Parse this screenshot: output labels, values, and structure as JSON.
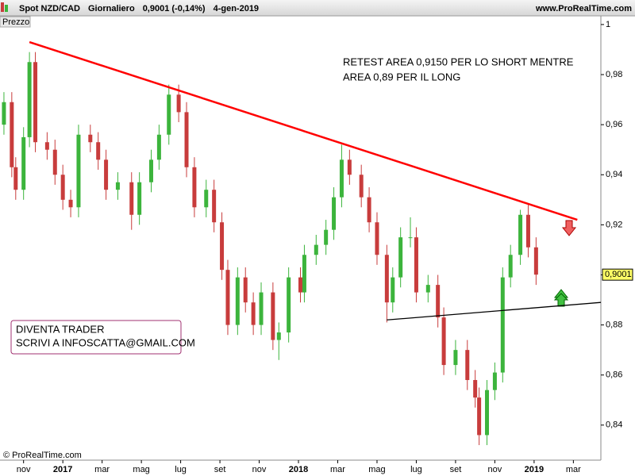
{
  "chart_data": {
    "type": "candlestick",
    "title": "Spot NZD/CAD",
    "timeframe": "Giornaliero",
    "quote": "0,9001 (-0,14%)",
    "date": "4-gen-2019",
    "source": "www.ProRealTime.com",
    "panel_label": "Prezzo",
    "copyright": "© ProRealTime.com",
    "annotations": [
      {
        "lines": [
          "RETEST AREA 0,9150 PER LO SHORT MENTRE",
          "AREA 0,89 PER IL LONG"
        ]
      },
      {
        "lines": [
          "DIVENTA TRADER",
          "SCRIVI A INFOSCATTA@GMAIL.COM"
        ],
        "boxed": true
      }
    ],
    "last_price": {
      "value": 0.9001,
      "label": "0,9001"
    },
    "up_color": "#3cb43c",
    "down_color": "#c83c3c",
    "x": [
      -1.0,
      -0.6,
      -0.4,
      0.0,
      0.3,
      0.6,
      1.2,
      1.6,
      2.0,
      2.4,
      2.8,
      3.4,
      3.8,
      4.2,
      4.8,
      5.5,
      5.9,
      6.5,
      6.9,
      7.4,
      7.9,
      8.3,
      8.7,
      9.3,
      9.7,
      10.1,
      10.4,
      10.9,
      11.3,
      11.7,
      12.1,
      12.7,
      13.0,
      13.5,
      14.1,
      14.3,
      14.9,
      15.4,
      15.8,
      16.2,
      16.6,
      17.2,
      17.6,
      18.0,
      18.5,
      18.8,
      19.2,
      19.7,
      20.0,
      20.6,
      21.1,
      21.4,
      22.0,
      22.6,
      23.0,
      23.2,
      23.6,
      24.0,
      24.4,
      24.8,
      25.3,
      25.7,
      26.1
    ],
    "open": [
      0.96,
      0.969,
      0.943,
      0.934,
      0.955,
      0.985,
      0.953,
      0.95,
      0.94,
      0.93,
      0.927,
      0.956,
      0.953,
      0.946,
      0.934,
      0.937,
      0.924,
      0.937,
      0.946,
      0.956,
      0.972,
      0.965,
      0.943,
      0.927,
      0.934,
      0.921,
      0.902,
      0.88,
      0.899,
      0.889,
      0.88,
      0.893,
      0.874,
      0.877,
      0.899,
      0.893,
      0.908,
      0.912,
      0.918,
      0.931,
      0.946,
      0.94,
      0.931,
      0.921,
      0.908,
      0.889,
      0.899,
      0.915,
      0.915,
      0.893,
      0.896,
      0.883,
      0.864,
      0.87,
      0.858,
      0.851,
      0.836,
      0.854,
      0.861,
      0.899,
      0.908,
      0.924,
      0.911
    ],
    "high": [
      0.973,
      0.973,
      0.947,
      0.959,
      0.989,
      0.989,
      0.957,
      0.954,
      0.944,
      0.934,
      0.96,
      0.96,
      0.957,
      0.95,
      0.941,
      0.941,
      0.941,
      0.95,
      0.96,
      0.976,
      0.976,
      0.969,
      0.947,
      0.938,
      0.938,
      0.925,
      0.906,
      0.903,
      0.903,
      0.893,
      0.897,
      0.897,
      0.881,
      0.903,
      0.903,
      0.912,
      0.916,
      0.922,
      0.935,
      0.952,
      0.95,
      0.944,
      0.935,
      0.925,
      0.912,
      0.903,
      0.919,
      0.923,
      0.919,
      0.9,
      0.9,
      0.887,
      0.874,
      0.874,
      0.862,
      0.855,
      0.858,
      0.865,
      0.903,
      0.912,
      0.926,
      0.928,
      0.915
    ],
    "low": [
      0.956,
      0.939,
      0.93,
      0.93,
      0.951,
      0.949,
      0.946,
      0.936,
      0.926,
      0.923,
      0.923,
      0.949,
      0.942,
      0.93,
      0.93,
      0.918,
      0.92,
      0.933,
      0.942,
      0.952,
      0.961,
      0.939,
      0.923,
      0.923,
      0.917,
      0.898,
      0.876,
      0.876,
      0.885,
      0.876,
      0.876,
      0.87,
      0.866,
      0.873,
      0.889,
      0.889,
      0.904,
      0.908,
      0.914,
      0.927,
      0.936,
      0.927,
      0.917,
      0.904,
      0.881,
      0.885,
      0.895,
      0.911,
      0.889,
      0.889,
      0.879,
      0.86,
      0.86,
      0.854,
      0.847,
      0.832,
      0.832,
      0.85,
      0.857,
      0.895,
      0.904,
      0.907,
      0.896
    ],
    "close": [
      0.969,
      0.943,
      0.934,
      0.955,
      0.985,
      0.953,
      0.95,
      0.94,
      0.93,
      0.927,
      0.956,
      0.953,
      0.946,
      0.934,
      0.937,
      0.924,
      0.937,
      0.946,
      0.956,
      0.972,
      0.965,
      0.943,
      0.927,
      0.934,
      0.921,
      0.902,
      0.88,
      0.899,
      0.889,
      0.88,
      0.893,
      0.874,
      0.877,
      0.899,
      0.893,
      0.908,
      0.912,
      0.918,
      0.931,
      0.946,
      0.94,
      0.931,
      0.921,
      0.908,
      0.889,
      0.899,
      0.915,
      0.915,
      0.893,
      0.896,
      0.883,
      0.864,
      0.87,
      0.858,
      0.851,
      0.836,
      0.854,
      0.861,
      0.899,
      0.908,
      0.924,
      0.911,
      0.9001
    ],
    "lines": [
      {
        "color": "#ff0000",
        "x": [
          0.3,
          28.2
        ],
        "y": [
          0.993,
          0.922
        ]
      },
      {
        "color": "#000000",
        "x": [
          18.5,
          29.4
        ],
        "y": [
          0.882,
          0.889
        ]
      }
    ],
    "xlim": [
      -1.2,
      29.4
    ],
    "ylim": [
      0.826,
      1.0098
    ],
    "xticks": [
      {
        "value": 0,
        "label": "nov"
      },
      {
        "value": 2,
        "label": "2017"
      },
      {
        "value": 4,
        "label": "mar"
      },
      {
        "value": 6,
        "label": "mag"
      },
      {
        "value": 8,
        "label": "lug"
      },
      {
        "value": 10,
        "label": "set"
      },
      {
        "value": 12,
        "label": "nov"
      },
      {
        "value": 14,
        "label": "2018"
      },
      {
        "value": 16,
        "label": "mar"
      },
      {
        "value": 18,
        "label": "mag"
      },
      {
        "value": 20,
        "label": "lug"
      },
      {
        "value": 22,
        "label": "set"
      },
      {
        "value": 24,
        "label": "nov"
      },
      {
        "value": 26,
        "label": "2019"
      },
      {
        "value": 28,
        "label": "mar"
      }
    ],
    "yticks": [
      {
        "value": 0.84,
        "label": "0,84"
      },
      {
        "value": 0.86,
        "label": "0,86"
      },
      {
        "value": 0.88,
        "label": "0,88"
      },
      {
        "value": 0.9,
        "label": "0,9"
      },
      {
        "value": 0.92,
        "label": "0,92"
      },
      {
        "value": 0.94,
        "label": "0,94"
      },
      {
        "value": 0.96,
        "label": "0,96"
      },
      {
        "value": 0.98,
        "label": "0,98"
      },
      1
    ]
  }
}
